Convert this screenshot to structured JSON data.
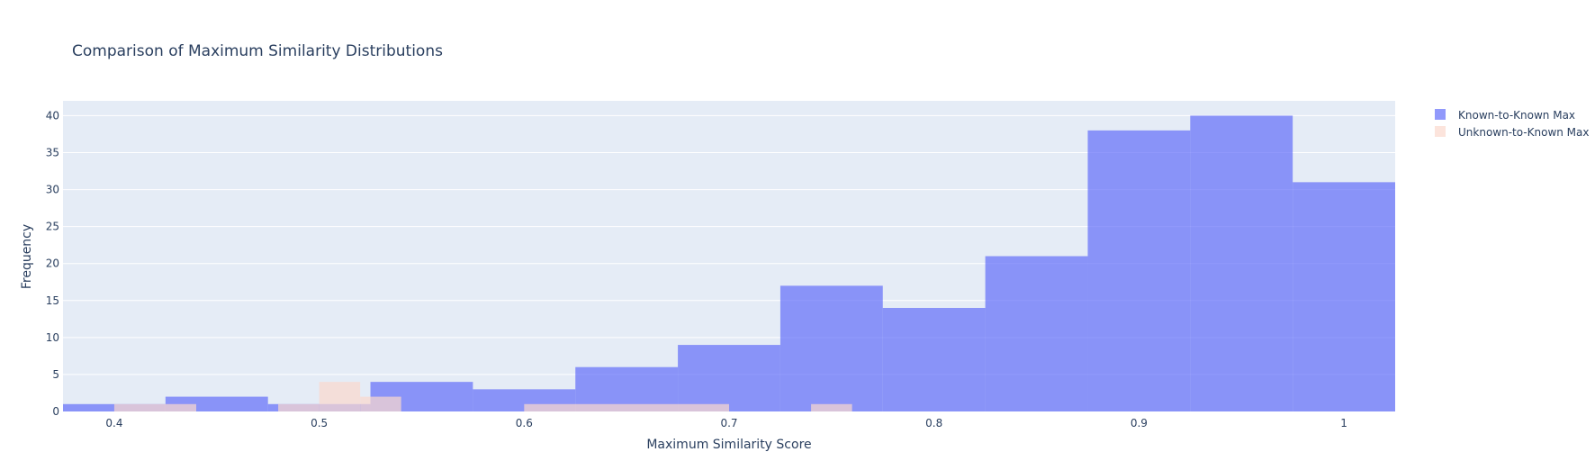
{
  "chart_data": {
    "type": "bar",
    "title": "Comparison of Maximum Similarity Distributions",
    "xlabel": "Maximum Similarity Score",
    "ylabel": "Frequency",
    "xlim": [
      0.375,
      1.025
    ],
    "ylim": [
      0,
      42
    ],
    "xticks": [
      0.4,
      0.5,
      0.6,
      0.7,
      0.8,
      0.9,
      1
    ],
    "xtick_labels": [
      "0.4",
      "0.5",
      "0.6",
      "0.7",
      "0.8",
      "0.9",
      "1"
    ],
    "yticks": [
      0,
      5,
      10,
      15,
      20,
      25,
      30,
      35,
      40
    ],
    "grid": true,
    "legend_position": "top-right",
    "background_color": "#e5ecf6",
    "series": [
      {
        "name": "Known-to-Known Max",
        "color": "#636efa",
        "opacity": 0.7,
        "bins": [
          {
            "x0": 0.375,
            "x1": 0.425,
            "value": 1
          },
          {
            "x0": 0.425,
            "x1": 0.475,
            "value": 2
          },
          {
            "x0": 0.475,
            "x1": 0.525,
            "value": 1
          },
          {
            "x0": 0.525,
            "x1": 0.575,
            "value": 4
          },
          {
            "x0": 0.575,
            "x1": 0.625,
            "value": 3
          },
          {
            "x0": 0.625,
            "x1": 0.675,
            "value": 6
          },
          {
            "x0": 0.675,
            "x1": 0.725,
            "value": 9
          },
          {
            "x0": 0.725,
            "x1": 0.775,
            "value": 17
          },
          {
            "x0": 0.775,
            "x1": 0.825,
            "value": 14
          },
          {
            "x0": 0.825,
            "x1": 0.875,
            "value": 21
          },
          {
            "x0": 0.875,
            "x1": 0.925,
            "value": 38
          },
          {
            "x0": 0.925,
            "x1": 0.975,
            "value": 40
          },
          {
            "x0": 0.975,
            "x1": 1.025,
            "value": 31
          }
        ]
      },
      {
        "name": "Unknown-to-Known Max",
        "color": "#fbd9cd",
        "opacity": 0.7,
        "bins": [
          {
            "x0": 0.4,
            "x1": 0.44,
            "value": 1
          },
          {
            "x0": 0.48,
            "x1": 0.5,
            "value": 1
          },
          {
            "x0": 0.5,
            "x1": 0.52,
            "value": 4
          },
          {
            "x0": 0.52,
            "x1": 0.54,
            "value": 2
          },
          {
            "x0": 0.6,
            "x1": 0.7,
            "value": 1
          },
          {
            "x0": 0.74,
            "x1": 0.76,
            "value": 1
          }
        ]
      }
    ]
  }
}
